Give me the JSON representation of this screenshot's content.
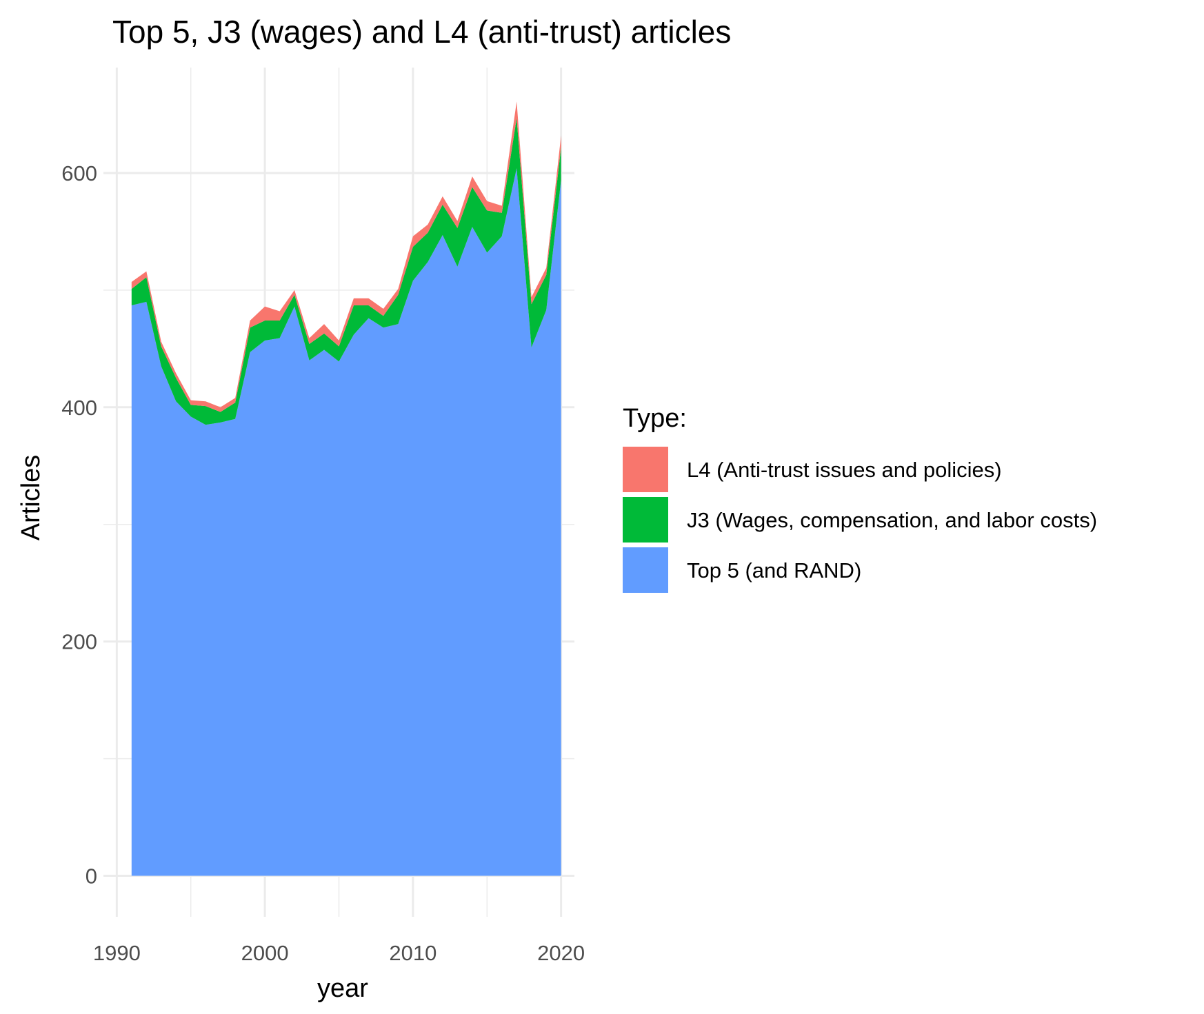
{
  "chart_data": {
    "type": "area",
    "stacked": true,
    "title": "Top 5, J3 (wages) and L4 (anti-trust) articles",
    "xlabel": "year",
    "ylabel": "Articles",
    "xlim": [
      1989.1,
      2020.9
    ],
    "ylim": [
      -35,
      690
    ],
    "x_ticks": [
      1990,
      2000,
      2010,
      2020
    ],
    "y_ticks": [
      0,
      200,
      400,
      600
    ],
    "grid": true,
    "legend": {
      "title": "Type:",
      "position": "right"
    },
    "x": [
      1991,
      1992,
      1993,
      1994,
      1995,
      1996,
      1997,
      1998,
      1999,
      2000,
      2001,
      2002,
      2003,
      2004,
      2005,
      2006,
      2007,
      2008,
      2009,
      2010,
      2011,
      2012,
      2013,
      2014,
      2015,
      2016,
      2017,
      2018,
      2019,
      2020
    ],
    "series": [
      {
        "name": "Top 5 (and RAND)",
        "color": "#619CFF",
        "values": [
          487,
          490,
          435,
          405,
          392,
          385,
          387,
          390,
          447,
          457,
          459,
          486,
          440,
          449,
          439,
          462,
          476,
          468,
          471,
          508,
          524,
          547,
          520,
          554,
          532,
          546,
          604,
          451,
          483,
          594
        ]
      },
      {
        "name": "J3 (Wages, compensation, and labor costs)",
        "color": "#00BA38",
        "values": [
          14,
          21,
          17,
          20,
          10,
          16,
          9,
          14,
          21,
          17,
          15,
          10,
          14,
          14,
          13,
          25,
          11,
          10,
          25,
          29,
          25,
          26,
          33,
          34,
          36,
          20,
          43,
          37,
          30,
          28
        ]
      },
      {
        "name": "L4 (Anti-trust issues and policies)",
        "color": "#F8766D",
        "values": [
          6,
          5,
          4,
          4,
          4,
          4,
          4,
          4,
          6,
          12,
          8,
          4,
          5,
          8,
          5,
          6,
          6,
          6,
          5,
          9,
          7,
          7,
          6,
          9,
          8,
          6,
          14,
          6,
          6,
          10
        ]
      }
    ]
  }
}
